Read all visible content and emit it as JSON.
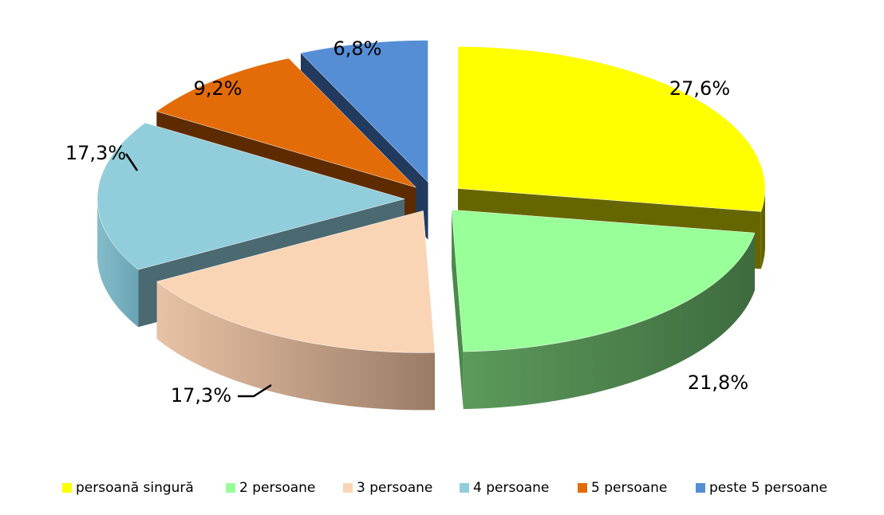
{
  "chart_data": {
    "type": "pie",
    "variant": "exploded-3d",
    "categories": [
      "persoană singură",
      "2 persoane",
      "3 persoane",
      "4 persoane",
      "5 persoane",
      "peste 5 persoane"
    ],
    "values": [
      27.6,
      21.8,
      17.3,
      17.3,
      9.2,
      6.8
    ],
    "labels": [
      "27,6%",
      "21,8%",
      "17,3%",
      "17,3%",
      "9,2%",
      "6,8%"
    ],
    "colors": [
      "#ffff00",
      "#99ff99",
      "#fad5b5",
      "#92cddc",
      "#e36c09",
      "#558ed5"
    ],
    "side_colors": [
      "#666600",
      "#4a8a4a",
      "#b08f78",
      "#4a6970",
      "#5e2b00",
      "#223a5e"
    ],
    "legend_position": "bottom",
    "title": ""
  }
}
